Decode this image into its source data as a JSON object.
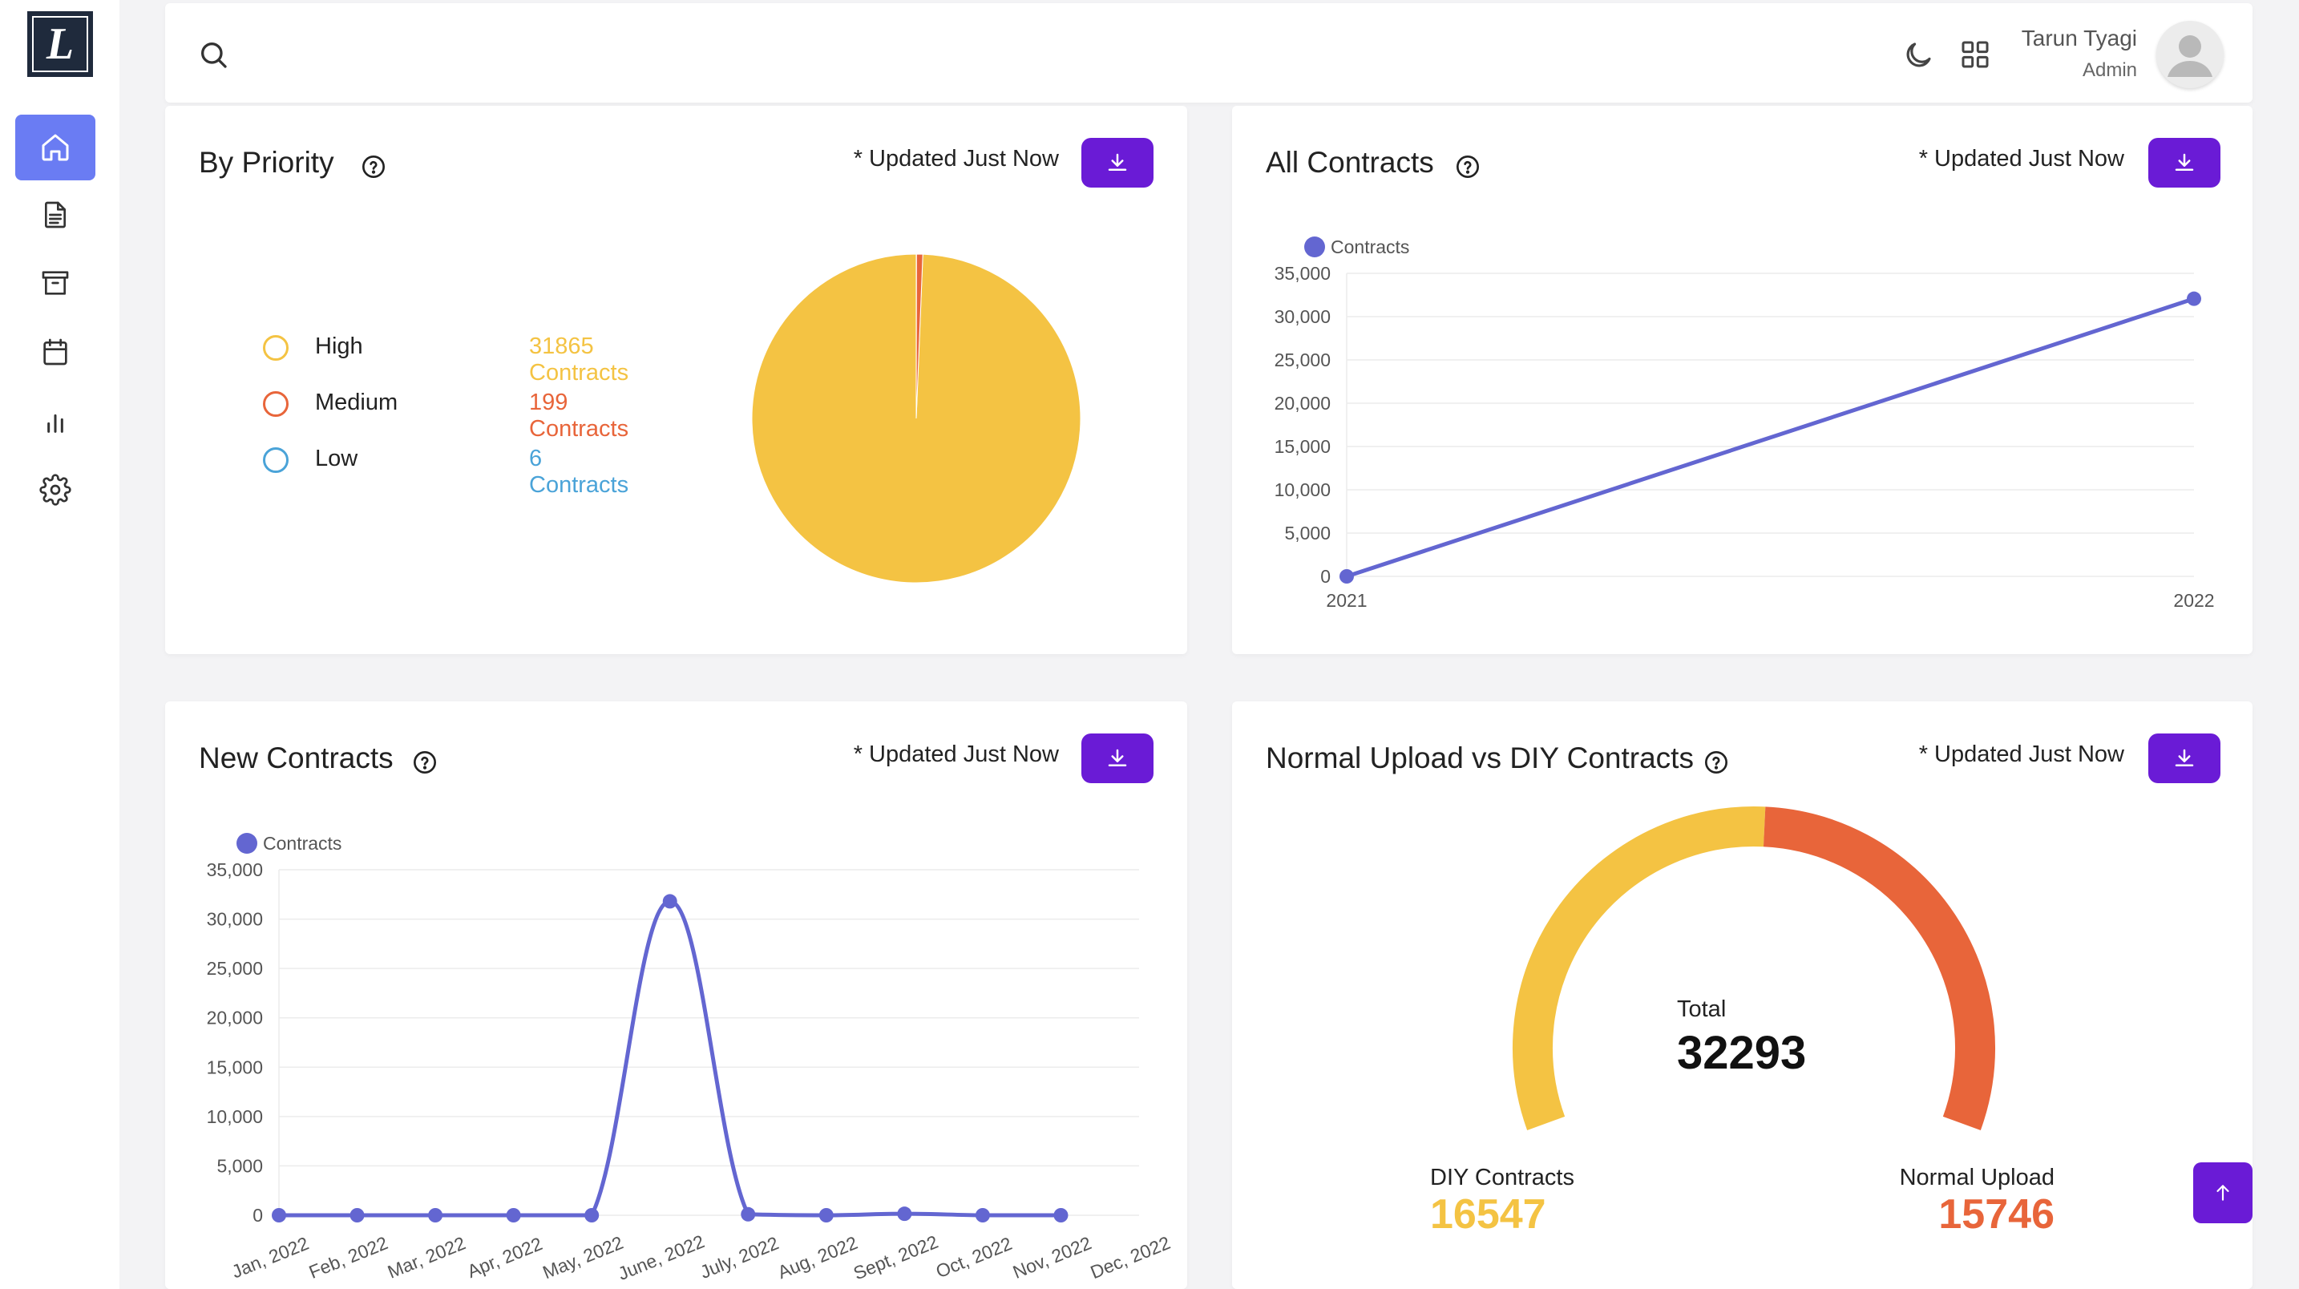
{
  "sidebar": {
    "logo_letter": "L",
    "items": [
      {
        "icon": "home-icon",
        "active": true
      },
      {
        "icon": "document-icon",
        "active": false
      },
      {
        "icon": "archive-icon",
        "active": false
      },
      {
        "icon": "calendar-icon",
        "active": false
      },
      {
        "icon": "bar-chart-icon",
        "active": false
      },
      {
        "icon": "gear-icon",
        "active": false
      }
    ]
  },
  "header": {
    "user_name": "Tarun Tyagi",
    "user_role": "Admin"
  },
  "colors": {
    "accent": "#6a1bd6",
    "nav_active": "#6a7cf3",
    "high": "#f4c343",
    "medium": "#e8653a",
    "low": "#4aa3d8",
    "line": "#6366d1"
  },
  "cards": {
    "priority": {
      "title": "By Priority",
      "updated": "* Updated Just Now",
      "legend": [
        {
          "label": "High",
          "value": "31865 Contracts"
        },
        {
          "label": "Medium",
          "value": "199 Contracts"
        },
        {
          "label": "Low",
          "value": "6 Contracts"
        }
      ]
    },
    "all_contracts": {
      "title": "All Contracts",
      "updated": "* Updated Just Now",
      "legend": "Contracts"
    },
    "new_contracts": {
      "title": "New Contracts",
      "updated": "* Updated Just Now",
      "legend": "Contracts"
    },
    "upload_vs_diy": {
      "title": "Normal Upload vs DIY Contracts",
      "updated": "* Updated Just Now",
      "total_label": "Total",
      "total_value": "32293",
      "diy_label": "DIY Contracts",
      "diy_value": "16547",
      "normal_label": "Normal Upload",
      "normal_value": "15746"
    }
  },
  "chart_data": [
    {
      "type": "pie",
      "categories": [
        "High",
        "Medium",
        "Low"
      ],
      "values": [
        31865,
        199,
        6
      ]
    },
    {
      "type": "line",
      "categories": [
        "2021",
        "2022"
      ],
      "series": [
        {
          "name": "Contracts",
          "values": [
            0,
            32070
          ]
        }
      ],
      "ylim": [
        0,
        35000
      ],
      "yticks": [
        "0",
        "5,000",
        "10,000",
        "15,000",
        "20,000",
        "25,000",
        "30,000",
        "35,000"
      ],
      "grid": true,
      "legend": "top-left"
    },
    {
      "type": "line",
      "categories": [
        "Jan, 2022",
        "Feb, 2022",
        "Mar, 2022",
        "Apr, 2022",
        "May, 2022",
        "June, 2022",
        "July, 2022",
        "Aug, 2022",
        "Sept, 2022",
        "Oct, 2022",
        "Nov, 2022",
        "Dec, 2022"
      ],
      "series": [
        {
          "name": "Contracts",
          "values": [
            0,
            0,
            0,
            0,
            0,
            31800,
            100,
            0,
            150,
            0,
            0,
            null
          ]
        }
      ],
      "ylim": [
        0,
        35000
      ],
      "yticks": [
        "0",
        "5,000",
        "10,000",
        "15,000",
        "20,000",
        "25,000",
        "30,000",
        "35,000"
      ],
      "grid": true,
      "legend": "top-left"
    },
    {
      "type": "pie",
      "categories": [
        "DIY Contracts",
        "Normal Upload"
      ],
      "values": [
        16547,
        15746
      ]
    }
  ]
}
